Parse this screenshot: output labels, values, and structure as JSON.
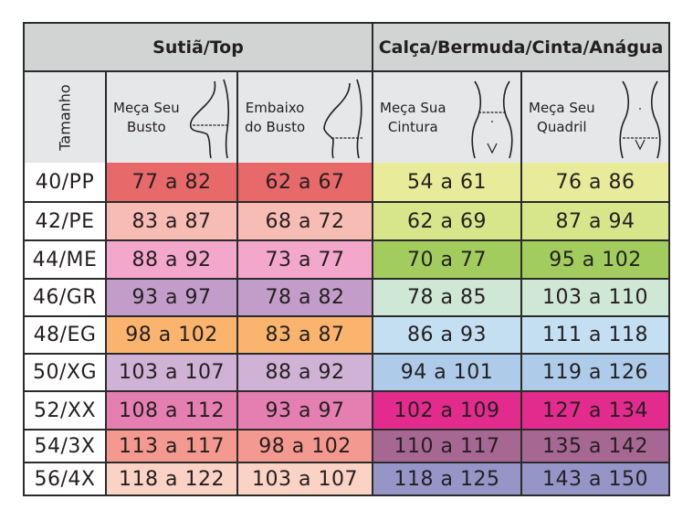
{
  "groups": {
    "top": "Sutiã/Top",
    "bottom": "Calça/Bermuda/Cinta/Anágua"
  },
  "subheaders": {
    "size": "Tamanho",
    "bust_l1": "Meça Seu",
    "bust_l2": "Busto",
    "underbust_l1": "Embaixo",
    "underbust_l2": "do Busto",
    "waist_l1": "Meça Sua",
    "waist_l2": "Cintura",
    "hip_l1": "Meça Seu",
    "hip_l2": "Quadril"
  },
  "icons": {
    "bust": "bust-profile-measure-icon",
    "underbust": "underbust-profile-measure-icon",
    "waist": "waist-front-measure-icon",
    "hip": "hip-front-measure-icon"
  },
  "rows": [
    {
      "size": "40/PP",
      "bust": "77 a 82",
      "underbust": "62 a 67",
      "waist": "54 a 61",
      "hip": "76 a 86",
      "top_color": "#e8696a",
      "bottom_color": "#e8ec9a",
      "height": 42
    },
    {
      "size": "42/PE",
      "bust": "83 a 87",
      "underbust": "68 a 72",
      "waist": "62 a 69",
      "hip": "87 a 94",
      "top_color": "#f7bcb4",
      "bottom_color": "#d7e58b",
      "height": 42
    },
    {
      "size": "44/ME",
      "bust": "88 a 92",
      "underbust": "73 a 77",
      "waist": "70 a 77",
      "hip": "95 a 102",
      "top_color": "#f2a7cb",
      "bottom_color": "#a2cd5e",
      "height": 42
    },
    {
      "size": "46/GR",
      "bust": "93 a 97",
      "underbust": "78 a 82",
      "waist": "78 a 85",
      "hip": "103 a 110",
      "top_color": "#c39dc9",
      "bottom_color": "#cfe7d5",
      "height": 41
    },
    {
      "size": "48/EG",
      "bust": "98 a 102",
      "underbust": "83 a 87",
      "waist": "86 a 93",
      "hip": "111 a 118",
      "top_color": "#fbb46e",
      "bottom_color": "#c4def2",
      "height": 41
    },
    {
      "size": "50/XG",
      "bust": "103 a 107",
      "underbust": "88 a 92",
      "waist": "94 a 101",
      "hip": "119 a 126",
      "top_color": "#cfb2d5",
      "bottom_color": "#aecbea",
      "height": 41
    },
    {
      "size": "52/XX",
      "bust": "108 a 112",
      "underbust": "93 a 97",
      "waist": "102 a 109",
      "hip": "127 a 134",
      "top_color": "#e57fb1",
      "bottom_color": "#e22b8c",
      "height": 42
    },
    {
      "size": "54/3X",
      "bust": "113 a 117",
      "underbust": "98 a 102",
      "waist": "110 a 117",
      "hip": "135 a 142",
      "top_color": "#f3998f",
      "bottom_color": "#a66892",
      "height": 36
    },
    {
      "size": "56/4X",
      "bust": "118 a 122",
      "underbust": "103 a 107",
      "waist": "118 a 125",
      "hip": "143 a 150",
      "top_color": "#fad3c4",
      "bottom_color": "#9595c8",
      "height": 36
    }
  ]
}
